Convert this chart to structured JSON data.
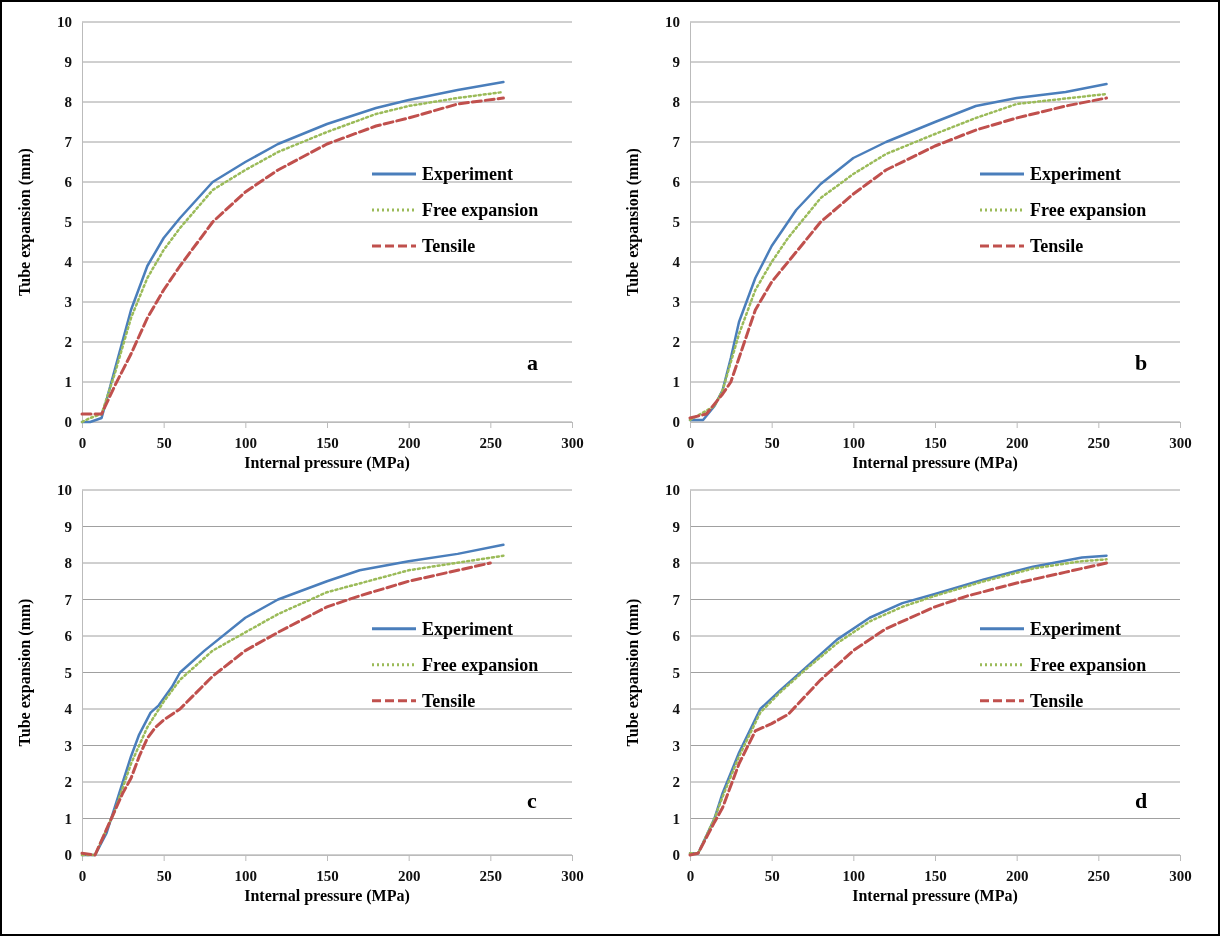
{
  "chart_data": [
    {
      "type": "line",
      "xlabel": "Internal pressure (MPa)",
      "ylabel": "Tube expansion (mm)",
      "annotations": [
        "a"
      ],
      "xlim": [
        0,
        300
      ],
      "ylim": [
        0,
        10
      ],
      "xticks": [
        0,
        50,
        100,
        150,
        200,
        250,
        300
      ],
      "yticks": [
        0,
        1,
        2,
        3,
        4,
        5,
        6,
        7,
        8,
        9,
        10
      ],
      "grid": "y",
      "legend": "right",
      "series": [
        {
          "name": "Experiment",
          "color": "#4a7ebb",
          "line_style": "solid",
          "x": [
            0,
            5,
            12,
            20,
            30,
            40,
            50,
            60,
            80,
            100,
            120,
            150,
            180,
            200,
            230,
            258
          ],
          "values": [
            0,
            0,
            0.1,
            1.3,
            2.8,
            3.9,
            4.6,
            5.1,
            6.0,
            6.5,
            6.95,
            7.45,
            7.85,
            8.05,
            8.3,
            8.5
          ]
        },
        {
          "name": "Free expansion",
          "color": "#9bbb59",
          "line_style": "dotted",
          "x": [
            0,
            5,
            12,
            20,
            30,
            40,
            50,
            60,
            80,
            100,
            120,
            150,
            180,
            200,
            230,
            258
          ],
          "values": [
            0,
            0.1,
            0.2,
            1.2,
            2.6,
            3.6,
            4.3,
            4.85,
            5.8,
            6.3,
            6.75,
            7.25,
            7.7,
            7.9,
            8.1,
            8.25
          ]
        },
        {
          "name": "Tensile",
          "color": "#c0504d",
          "line_style": "dashed",
          "x": [
            0,
            12,
            20,
            30,
            40,
            50,
            60,
            80,
            100,
            120,
            150,
            180,
            200,
            230,
            258
          ],
          "values": [
            0.2,
            0.2,
            0.9,
            1.7,
            2.6,
            3.3,
            3.9,
            5.0,
            5.75,
            6.3,
            6.95,
            7.4,
            7.6,
            7.95,
            8.1
          ]
        }
      ]
    },
    {
      "type": "line",
      "xlabel": "Internal pressure (MPa)",
      "ylabel": "Tube expansion (mm)",
      "annotations": [
        "b"
      ],
      "xlim": [
        0,
        300
      ],
      "ylim": [
        0,
        10
      ],
      "xticks": [
        0,
        50,
        100,
        150,
        200,
        250,
        300
      ],
      "yticks": [
        0,
        1,
        2,
        3,
        4,
        5,
        6,
        7,
        8,
        9,
        10
      ],
      "grid": "y",
      "legend": "right",
      "series": [
        {
          "name": "Experiment",
          "color": "#4a7ebb",
          "line_style": "solid",
          "x": [
            0,
            8,
            15,
            20,
            25,
            30,
            40,
            50,
            60,
            65,
            80,
            100,
            120,
            150,
            175,
            200,
            230,
            255
          ],
          "values": [
            0.05,
            0.05,
            0.4,
            0.8,
            1.6,
            2.5,
            3.6,
            4.4,
            5.0,
            5.3,
            5.95,
            6.6,
            7.0,
            7.5,
            7.9,
            8.1,
            8.25,
            8.45
          ]
        },
        {
          "name": "Free expansion",
          "color": "#9bbb59",
          "line_style": "dotted",
          "x": [
            0,
            15,
            20,
            30,
            40,
            50,
            60,
            80,
            100,
            120,
            150,
            175,
            200,
            255
          ],
          "values": [
            0.05,
            0.4,
            0.8,
            2.2,
            3.3,
            4.0,
            4.6,
            5.6,
            6.2,
            6.7,
            7.2,
            7.6,
            7.95,
            8.2
          ]
        },
        {
          "name": "Tensile",
          "color": "#c0504d",
          "line_style": "dashed",
          "x": [
            0,
            10,
            20,
            25,
            30,
            40,
            50,
            60,
            80,
            100,
            120,
            150,
            175,
            200,
            230,
            255
          ],
          "values": [
            0.1,
            0.2,
            0.7,
            1.0,
            1.6,
            2.8,
            3.5,
            4.0,
            5.0,
            5.7,
            6.3,
            6.9,
            7.3,
            7.6,
            7.9,
            8.1
          ]
        }
      ]
    },
    {
      "type": "line",
      "xlabel": "Internal pressure (MPa)",
      "ylabel": "Tube expansion (mm)",
      "annotations": [
        "c"
      ],
      "xlim": [
        0,
        300
      ],
      "ylim": [
        0,
        10
      ],
      "xticks": [
        0,
        50,
        100,
        150,
        200,
        250,
        300
      ],
      "yticks": [
        0,
        1,
        2,
        3,
        4,
        5,
        6,
        7,
        8,
        9,
        10
      ],
      "grid": "y",
      "legend": "right",
      "series": [
        {
          "name": "Experiment",
          "color": "#4a7ebb",
          "line_style": "solid",
          "x": [
            0,
            8,
            15,
            20,
            25,
            30,
            35,
            42,
            47,
            55,
            60,
            75,
            100,
            120,
            150,
            170,
            200,
            230,
            258
          ],
          "values": [
            0,
            0,
            0.6,
            1.3,
            2.0,
            2.7,
            3.3,
            3.9,
            4.1,
            4.6,
            5.0,
            5.6,
            6.5,
            7.0,
            7.5,
            7.8,
            8.05,
            8.25,
            8.5
          ]
        },
        {
          "name": "Free expansion",
          "color": "#9bbb59",
          "line_style": "dotted",
          "x": [
            0,
            8,
            20,
            30,
            40,
            50,
            60,
            80,
            100,
            120,
            150,
            200,
            258
          ],
          "values": [
            0,
            0,
            1.2,
            2.5,
            3.5,
            4.2,
            4.8,
            5.6,
            6.1,
            6.6,
            7.2,
            7.8,
            8.2
          ]
        },
        {
          "name": "Tensile",
          "color": "#c0504d",
          "line_style": "dashed",
          "x": [
            0,
            8,
            20,
            25,
            30,
            35,
            40,
            45,
            50,
            60,
            80,
            100,
            120,
            150,
            170,
            200,
            230,
            250
          ],
          "values": [
            0.05,
            0,
            1.2,
            1.7,
            2.1,
            2.7,
            3.2,
            3.5,
            3.7,
            4.0,
            4.9,
            5.6,
            6.1,
            6.8,
            7.1,
            7.5,
            7.8,
            8.0
          ]
        }
      ]
    },
    {
      "type": "line",
      "xlabel": "Internal pressure (MPa)",
      "ylabel": "Tube expansion (mm)",
      "annotations": [
        "d"
      ],
      "xlim": [
        0,
        300
      ],
      "ylim": [
        0,
        10
      ],
      "xticks": [
        0,
        50,
        100,
        150,
        200,
        250,
        300
      ],
      "yticks": [
        0,
        1,
        2,
        3,
        4,
        5,
        6,
        7,
        8,
        9,
        10
      ],
      "grid": "y",
      "legend": "right",
      "series": [
        {
          "name": "Experiment",
          "color": "#4a7ebb",
          "line_style": "solid",
          "x": [
            0,
            5,
            15,
            20,
            30,
            43,
            55,
            70,
            90,
            110,
            130,
            150,
            180,
            210,
            240,
            255
          ],
          "values": [
            0.05,
            0.05,
            1.0,
            1.7,
            2.8,
            4.0,
            4.5,
            5.1,
            5.9,
            6.5,
            6.9,
            7.15,
            7.55,
            7.9,
            8.15,
            8.2
          ]
        },
        {
          "name": "Free expansion",
          "color": "#9bbb59",
          "line_style": "dotted",
          "x": [
            0,
            5,
            15,
            20,
            30,
            43,
            55,
            70,
            90,
            110,
            130,
            150,
            180,
            210,
            240,
            255
          ],
          "values": [
            0.05,
            0.05,
            1.0,
            1.6,
            2.7,
            3.9,
            4.45,
            5.05,
            5.8,
            6.4,
            6.8,
            7.1,
            7.5,
            7.85,
            8.05,
            8.1
          ]
        },
        {
          "name": "Tensile",
          "color": "#c0504d",
          "line_style": "dashed",
          "x": [
            0,
            5,
            15,
            20,
            30,
            40,
            50,
            60,
            80,
            100,
            120,
            150,
            170,
            200,
            230,
            255
          ],
          "values": [
            0,
            0.05,
            0.9,
            1.3,
            2.5,
            3.4,
            3.6,
            3.85,
            4.8,
            5.6,
            6.2,
            6.8,
            7.1,
            7.45,
            7.75,
            8.0
          ]
        }
      ]
    }
  ]
}
